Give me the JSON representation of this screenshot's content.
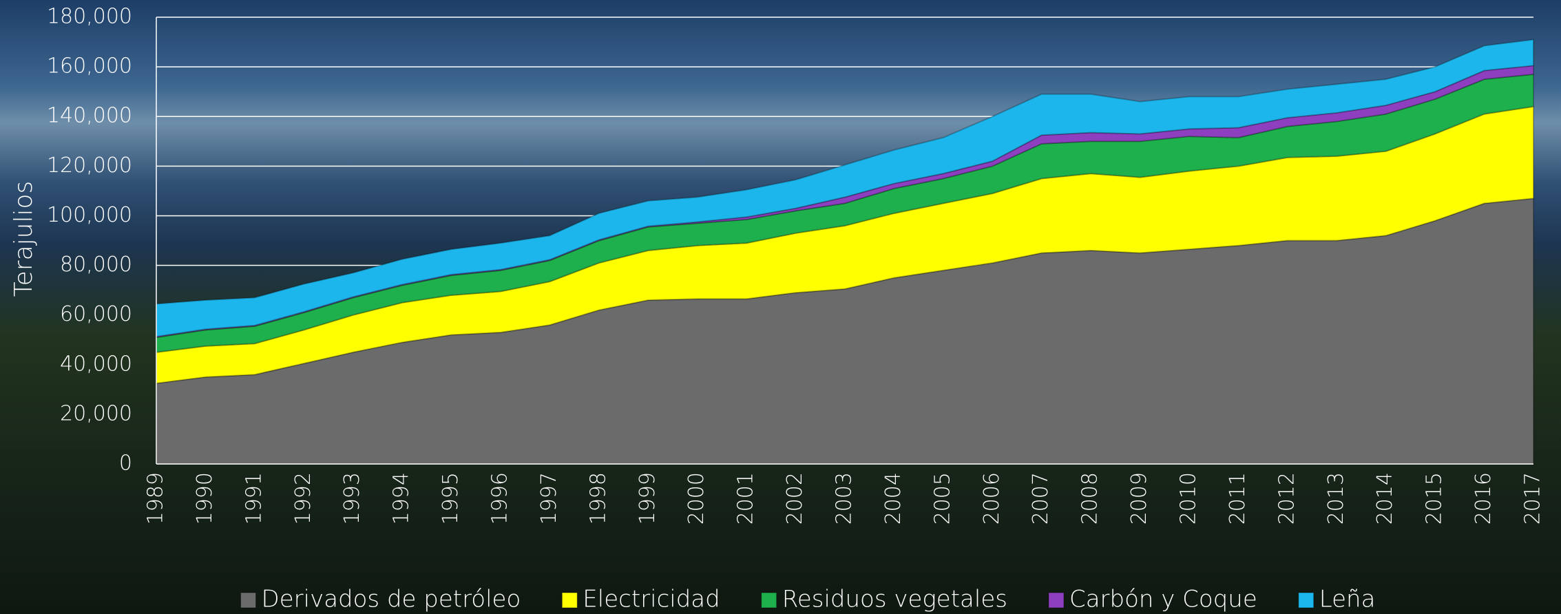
{
  "chart_data": {
    "type": "area",
    "stacked": true,
    "y_label": "Terajulios",
    "categories": [
      "1989",
      "1990",
      "1991",
      "1992",
      "1993",
      "1994",
      "1995",
      "1996",
      "1997",
      "1998",
      "1999",
      "2000",
      "2001",
      "2002",
      "2003",
      "2004",
      "2005",
      "2006",
      "2007",
      "2008",
      "2009",
      "2010",
      "2011",
      "2012",
      "2013",
      "2014",
      "2015",
      "2016",
      "2017"
    ],
    "series": [
      {
        "name": "Derivados de petróleo",
        "color": "#6b6b6b",
        "values": [
          32500,
          35000,
          36000,
          40500,
          45000,
          49000,
          52000,
          53000,
          56000,
          62000,
          66000,
          66500,
          66500,
          69000,
          70500,
          75000,
          78000,
          81000,
          85000,
          86000,
          85000,
          86500,
          88000,
          90000,
          90000,
          92000,
          98000,
          105000,
          107000
        ]
      },
      {
        "name": "Electricidad",
        "color": "#ffff00",
        "values": [
          12500,
          12500,
          12500,
          13500,
          15000,
          16000,
          16000,
          16500,
          17500,
          19000,
          20000,
          21500,
          22500,
          24000,
          25500,
          26000,
          27000,
          28000,
          30000,
          31000,
          30500,
          31500,
          32000,
          33500,
          34000,
          34000,
          35000,
          36000,
          37000
        ]
      },
      {
        "name": "Residuos vegetales",
        "color": "#1fb04e",
        "values": [
          6000,
          6500,
          7000,
          7000,
          7000,
          7000,
          8000,
          8500,
          8500,
          9000,
          9500,
          9000,
          9500,
          9000,
          9000,
          10000,
          10000,
          11000,
          14000,
          13000,
          14500,
          14000,
          11500,
          12500,
          14000,
          15000,
          14000,
          14000,
          13000
        ]
      },
      {
        "name": "Carbón y Coque",
        "color": "#8e3fc0",
        "values": [
          300,
          300,
          300,
          300,
          300,
          300,
          300,
          300,
          300,
          300,
          300,
          500,
          1000,
          1000,
          2500,
          2000,
          2000,
          2000,
          3500,
          3500,
          3000,
          3000,
          4000,
          3500,
          3500,
          3500,
          3000,
          3500,
          3500
        ]
      },
      {
        "name": "Leña",
        "color": "#1cb6ec",
        "values": [
          13200,
          11700,
          11200,
          11200,
          9700,
          10200,
          10200,
          10700,
          9700,
          10700,
          10200,
          10000,
          11000,
          11500,
          13000,
          13500,
          14500,
          18000,
          16500,
          15500,
          13000,
          13000,
          12500,
          11500,
          11500,
          10500,
          10000,
          10000,
          10500
        ]
      }
    ],
    "ylim": [
      0,
      180000
    ],
    "yticks": [
      0,
      {
        "value": 20000,
        "label": "20,000"
      },
      {
        "value": 40000,
        "label": "40,000"
      },
      {
        "value": 60000,
        "label": "60,000"
      },
      {
        "value": 80000,
        "label": "80,000"
      },
      {
        "value": 100000,
        "label": "100,000"
      },
      {
        "value": 120000,
        "label": "120,000"
      },
      {
        "value": 140000,
        "label": "140,000"
      },
      {
        "value": 160000,
        "label": "160,000"
      },
      {
        "value": 180000,
        "label": "180,000"
      }
    ],
    "grid": true,
    "legend": "bottom"
  }
}
